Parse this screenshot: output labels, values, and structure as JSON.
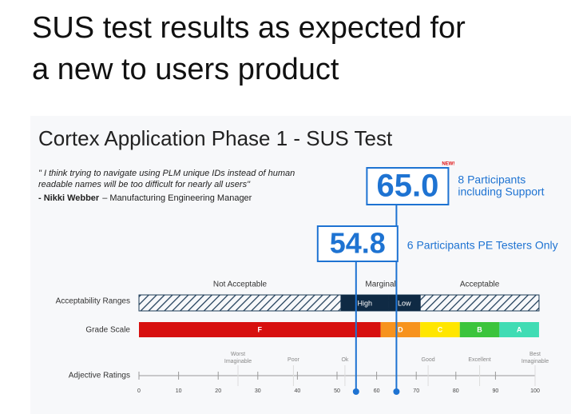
{
  "heading": {
    "lines": [
      "SUS test results as expected for",
      "a new to users product"
    ]
  },
  "slide": {
    "title": "Cortex Application Phase 1 - SUS Test",
    "quote_lines": [
      "\" I think trying to navigate using PLM unique IDs instead of human",
      "readable names will be too difficult for nearly all users\""
    ],
    "attribution_name": "- Nikki Webber",
    "attribution_role": "– Manufacturing Engineering Manager",
    "scores": [
      {
        "value": 65.0,
        "label": "65.0",
        "badge": "NEW!",
        "note_lines": [
          "8 Participants",
          "including Support"
        ]
      },
      {
        "value": 54.8,
        "label": "54.8",
        "note_lines": [
          "6 Participants PE Testers Only"
        ]
      }
    ],
    "score_color": "#1e73d2",
    "acceptability": {
      "label": "Acceptability Ranges",
      "ranges": [
        {
          "name": "Not Acceptable",
          "from": 0,
          "to": 51
        },
        {
          "name": "Marginal",
          "from": 51,
          "to": 71
        },
        {
          "name": "Acceptable",
          "from": 71,
          "to": 101
        }
      ],
      "marginal_parts": [
        {
          "name": "High",
          "from": 51,
          "to": 63
        },
        {
          "name": "Low",
          "from": 63,
          "to": 71
        }
      ],
      "marginal_color": "#0f2a44"
    },
    "grades": {
      "label": "Grade Scale",
      "bands": [
        {
          "name": "F",
          "from": 0,
          "to": 61,
          "color": "#d7100f"
        },
        {
          "name": "D",
          "from": 61,
          "to": 71,
          "color": "#f7931e"
        },
        {
          "name": "C",
          "from": 71,
          "to": 81,
          "color": "#ffe600"
        },
        {
          "name": "B",
          "from": 81,
          "to": 91,
          "color": "#3cc43c"
        },
        {
          "name": "A",
          "from": 91,
          "to": 101,
          "color": "#40dcb4"
        }
      ]
    },
    "adjectives": {
      "label": "Adjective Ratings",
      "items": [
        {
          "name": "Worst Imaginable",
          "value": 25
        },
        {
          "name": "Poor",
          "value": 39
        },
        {
          "name": "Ok",
          "value": 52
        },
        {
          "name": "Good",
          "value": 73
        },
        {
          "name": "Excellent",
          "value": 86
        },
        {
          "name": "Best Imaginable",
          "value": 100
        }
      ]
    },
    "scale": {
      "xlim": [
        0,
        100
      ],
      "xticks": [
        0,
        10,
        20,
        30,
        40,
        50,
        60,
        70,
        80,
        90,
        100
      ]
    }
  }
}
